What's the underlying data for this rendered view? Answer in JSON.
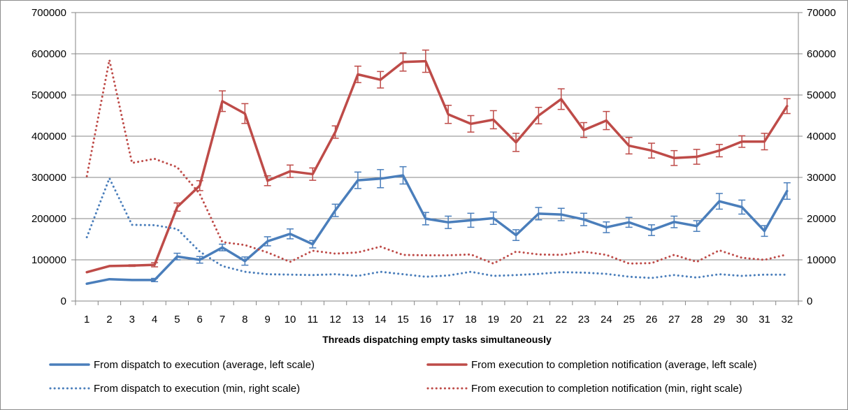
{
  "chart_data": {
    "type": "line",
    "xlabel": "Threads dispatching empty tasks simultaneously",
    "x": [
      1,
      2,
      3,
      4,
      5,
      6,
      7,
      8,
      9,
      10,
      11,
      12,
      13,
      14,
      15,
      16,
      17,
      18,
      19,
      20,
      21,
      22,
      23,
      24,
      25,
      26,
      27,
      28,
      29,
      30,
      31,
      32
    ],
    "x_labels": [
      "1",
      "2",
      "3",
      "4",
      "5",
      "6",
      "7",
      "8",
      "9",
      "10",
      "11",
      "12",
      "13",
      "14",
      "15",
      "16",
      "17",
      "18",
      "19",
      "20",
      "21",
      "22",
      "23",
      "24",
      "25",
      "26",
      "27",
      "28",
      "29",
      "30",
      "31",
      "32"
    ],
    "y_left": {
      "lim": [
        0,
        700000
      ],
      "ticks": [
        "0",
        "100000",
        "200000",
        "300000",
        "400000",
        "500000",
        "600000",
        "700000"
      ]
    },
    "y_right": {
      "lim": [
        0,
        70000
      ],
      "ticks": [
        "0",
        "10000",
        "20000",
        "30000",
        "40000",
        "50000",
        "60000",
        "70000"
      ]
    },
    "series": [
      {
        "name": "From dispatch to execution (average, left scale)",
        "axis": "left",
        "style": "solid",
        "color": "#4a7ebb",
        "values": [
          42000,
          53000,
          51000,
          51000,
          108000,
          100000,
          130000,
          97000,
          145000,
          163000,
          138000,
          220000,
          293000,
          297000,
          305000,
          200000,
          191000,
          196000,
          201000,
          160000,
          212000,
          210000,
          198000,
          179000,
          191000,
          172000,
          192000,
          182000,
          242000,
          228000,
          170000,
          267000
        ],
        "errors": [
          0,
          0,
          0,
          4000,
          8000,
          8000,
          8000,
          10000,
          11000,
          12000,
          9000,
          15000,
          20000,
          22000,
          21000,
          15000,
          15000,
          17000,
          15000,
          13000,
          15000,
          15000,
          15000,
          13000,
          12000,
          13000,
          14000,
          13000,
          19000,
          17000,
          13000,
          20000
        ]
      },
      {
        "name": "From execution to completion notification (average, left scale)",
        "axis": "left",
        "style": "solid",
        "color": "#be4b48",
        "values": [
          70000,
          85000,
          86000,
          88000,
          228000,
          280000,
          485000,
          455000,
          292000,
          315000,
          308000,
          410000,
          550000,
          537000,
          580000,
          582000,
          453000,
          430000,
          440000,
          385000,
          450000,
          490000,
          415000,
          438000,
          377000,
          365000,
          347000,
          350000,
          365000,
          387000,
          387000,
          473000
        ],
        "errors": [
          0,
          0,
          2000,
          5000,
          10000,
          12000,
          25000,
          24000,
          12000,
          15000,
          15000,
          15000,
          20000,
          20000,
          22000,
          27000,
          22000,
          20000,
          22000,
          22000,
          20000,
          25000,
          18000,
          22000,
          20000,
          18000,
          18000,
          18000,
          15000,
          14000,
          20000,
          18000
        ]
      },
      {
        "name": "From dispatch to execution (min, right scale)",
        "axis": "right",
        "style": "dotted",
        "color": "#4a7ebb",
        "values": [
          15500,
          29800,
          18500,
          18400,
          17500,
          12000,
          8500,
          7100,
          6500,
          6400,
          6300,
          6500,
          6100,
          7100,
          6500,
          5900,
          6200,
          7100,
          6100,
          6300,
          6600,
          7000,
          6900,
          6600,
          5900,
          5600,
          6300,
          5700,
          6500,
          6100,
          6400,
          6400
        ]
      },
      {
        "name": "From execution to completion notification (min, right scale)",
        "axis": "right",
        "style": "dotted",
        "color": "#be4b48",
        "values": [
          30300,
          58500,
          33500,
          34500,
          32500,
          26000,
          14300,
          13600,
          11800,
          9500,
          12200,
          11500,
          11800,
          13200,
          11200,
          11100,
          11100,
          11300,
          9100,
          12000,
          11300,
          11200,
          12000,
          11200,
          9100,
          9200,
          11200,
          9500,
          12300,
          10500,
          10000,
          11300
        ]
      }
    ]
  }
}
